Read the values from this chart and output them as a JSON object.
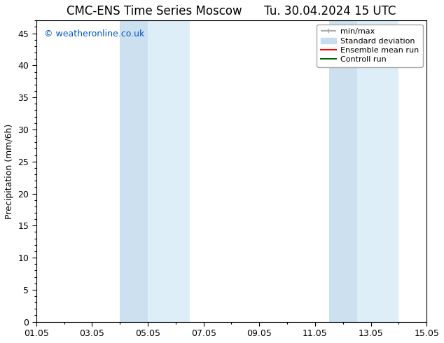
{
  "title_left": "CMC-ENS Time Series Moscow",
  "title_right": "Tu. 30.04.2024 15 UTC",
  "ylabel": "Precipitation (mm/6h)",
  "background_color": "#ffffff",
  "plot_bg_color": "#ffffff",
  "xlim_start": 0,
  "xlim_end": 14,
  "ylim": [
    0,
    47
  ],
  "yticks": [
    0,
    5,
    10,
    15,
    20,
    25,
    30,
    35,
    40,
    45
  ],
  "xtick_labels": [
    "01.05",
    "03.05",
    "05.05",
    "07.05",
    "09.05",
    "11.05",
    "13.05",
    "15.05"
  ],
  "xtick_positions": [
    0,
    2,
    4,
    6,
    8,
    10,
    12,
    14
  ],
  "shaded_regions": [
    [
      3.0,
      4.0
    ],
    [
      4.0,
      5.5
    ],
    [
      10.5,
      11.5
    ],
    [
      11.5,
      13.0
    ]
  ],
  "shaded_colors": [
    "#ccddf0",
    "#ddeeff",
    "#ccddf0",
    "#ddeeff"
  ],
  "watermark_text": "© weatheronline.co.uk",
  "watermark_color": "#0055cc",
  "legend_items": [
    {
      "label": "min/max",
      "color": "#aaaaaa",
      "lw": 1.5
    },
    {
      "label": "Standard deviation",
      "color": "#c8ddf0",
      "lw": 8
    },
    {
      "label": "Ensemble mean run",
      "color": "#ff0000",
      "lw": 1.5
    },
    {
      "label": "Controll run",
      "color": "#006600",
      "lw": 1.5
    }
  ],
  "title_fontsize": 12,
  "axis_fontsize": 9,
  "tick_fontsize": 9,
  "watermark_fontsize": 9
}
